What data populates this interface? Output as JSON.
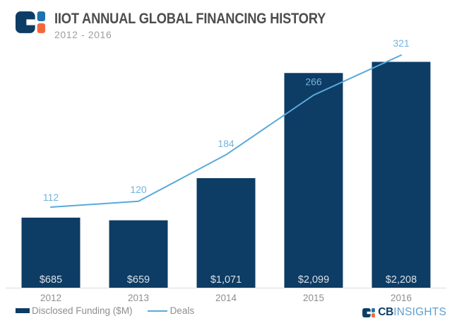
{
  "header": {
    "title": "IIOT ANNUAL GLOBAL FINANCING HISTORY",
    "subtitle": "2012 - 2016"
  },
  "legend": {
    "funding_label": "Disclosed Funding ($M)",
    "deals_label": "Deals"
  },
  "branding": {
    "cb": "CB",
    "insights": "INSIGHTS"
  },
  "colors": {
    "navy": "#0d3c64",
    "line_blue": "#58aadb",
    "line_label_blue": "#74b3de",
    "bar_value_label": "#dbe0e7",
    "axis_text": "#8e8e8e",
    "axis_line": "#dcdcdc",
    "title": "#4d4d4d",
    "subtitle": "#9e9e9e",
    "logo_blue": "#1d71ad",
    "logo_orange": "#f2683c",
    "insights_text": "#5e9fd0"
  },
  "chart_data": {
    "type": "bar+line combo",
    "title": "IIOT Annual Global Financing History 2012 - 2016",
    "categories": [
      "2012",
      "2013",
      "2014",
      "2015",
      "2016"
    ],
    "series": [
      {
        "name": "Disclosed Funding ($M)",
        "type": "bar",
        "values": [
          685,
          659,
          1071,
          2099,
          2208
        ],
        "value_labels": [
          "$685",
          "$659",
          "$1,071",
          "$2,099",
          "$2,208"
        ],
        "label_position": "inside-bottom"
      },
      {
        "name": "Deals",
        "type": "line",
        "values": [
          112,
          120,
          184,
          266,
          321
        ],
        "value_labels": [
          "112",
          "120",
          "184",
          "266",
          "321"
        ],
        "label_position": "above-point"
      }
    ],
    "xlabel": "",
    "ylabel": "",
    "gridlines": false,
    "y_axis_shown": false,
    "legend_position": "bottom-left"
  }
}
